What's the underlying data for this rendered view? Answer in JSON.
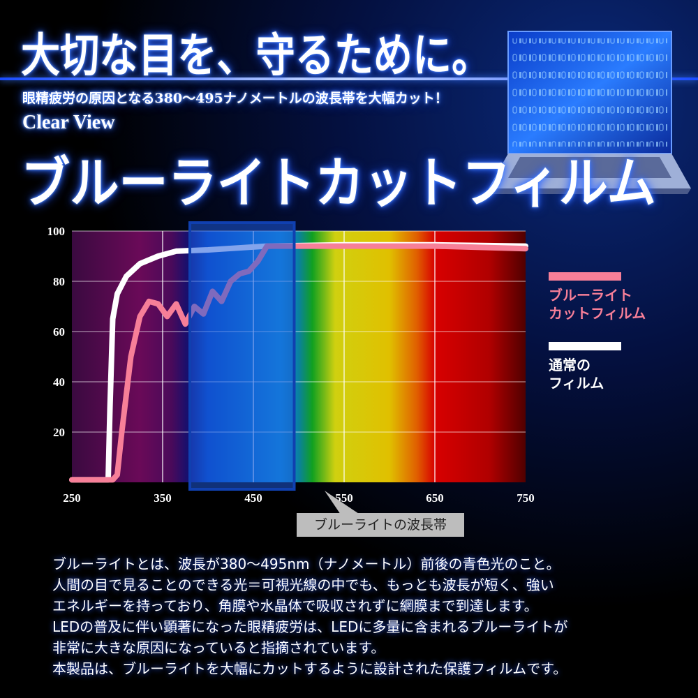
{
  "header": {
    "headline": "大切な目を、守るために。",
    "subtitle": "眼精疲労の原因となる380〜495ナノメートルの波長帯を大幅カット！",
    "brand": "Clear View",
    "product": "ブルーライトカットフィルム"
  },
  "chart_data": {
    "type": "line",
    "xlim": [
      250,
      750
    ],
    "ylim": [
      0,
      100
    ],
    "x_ticks": [
      "250",
      "350",
      "450",
      "550",
      "650",
      "750"
    ],
    "y_ticks": [
      "100",
      "80",
      "60",
      "40",
      "20"
    ],
    "grid": true,
    "legend_placement": "right",
    "highlight_band": {
      "x": [
        380,
        495
      ],
      "label": "ブルーライトの波長帯",
      "color": "#1e5adc"
    },
    "series": [
      {
        "name": "ブルーライトカットフィルム",
        "color": "#f77f98",
        "points": [
          [
            250,
            1
          ],
          [
            295,
            1
          ],
          [
            300,
            3
          ],
          [
            305,
            20
          ],
          [
            315,
            50
          ],
          [
            325,
            66
          ],
          [
            335,
            72
          ],
          [
            345,
            71
          ],
          [
            355,
            66
          ],
          [
            365,
            71
          ],
          [
            375,
            63
          ],
          [
            385,
            70
          ],
          [
            395,
            67
          ],
          [
            405,
            76
          ],
          [
            415,
            72
          ],
          [
            425,
            80
          ],
          [
            435,
            83
          ],
          [
            445,
            84
          ],
          [
            455,
            88
          ],
          [
            465,
            94
          ],
          [
            500,
            94
          ],
          [
            600,
            94
          ],
          [
            650,
            94
          ],
          [
            750,
            93
          ]
        ]
      },
      {
        "name": "通常のフィルム",
        "color": "#ffffff",
        "points": [
          [
            250,
            1
          ],
          [
            290,
            1
          ],
          [
            292,
            30
          ],
          [
            295,
            65
          ],
          [
            300,
            75
          ],
          [
            310,
            82
          ],
          [
            325,
            87
          ],
          [
            345,
            90
          ],
          [
            365,
            92
          ],
          [
            400,
            92.5
          ],
          [
            465,
            94
          ],
          [
            550,
            94.5
          ],
          [
            650,
            94.5
          ],
          [
            750,
            94
          ]
        ]
      }
    ]
  },
  "legend": {
    "pink_label_1": "ブルーライト",
    "pink_label_2": "カットフィルム",
    "white_label_1": "通常の",
    "white_label_2": "フィルム"
  },
  "description": [
    "ブルーライトとは、波長が380〜495nm（ナノメートル）前後の青色光のこと。",
    "人間の目で見ることのできる光＝可視光線の中でも、もっとも波長が短く、強い",
    "エネルギーを持っており、角膜や水晶体で吸収されずに網膜まで到達します。",
    "LEDの普及に伴い顕著になった眼精疲労は、LEDに多量に含まれるブルーライトが",
    "非常に大きな原因になっていると指摘されています。",
    "本製品は、ブルーライトを大幅にカットするように設計された保護フィルムです。"
  ]
}
